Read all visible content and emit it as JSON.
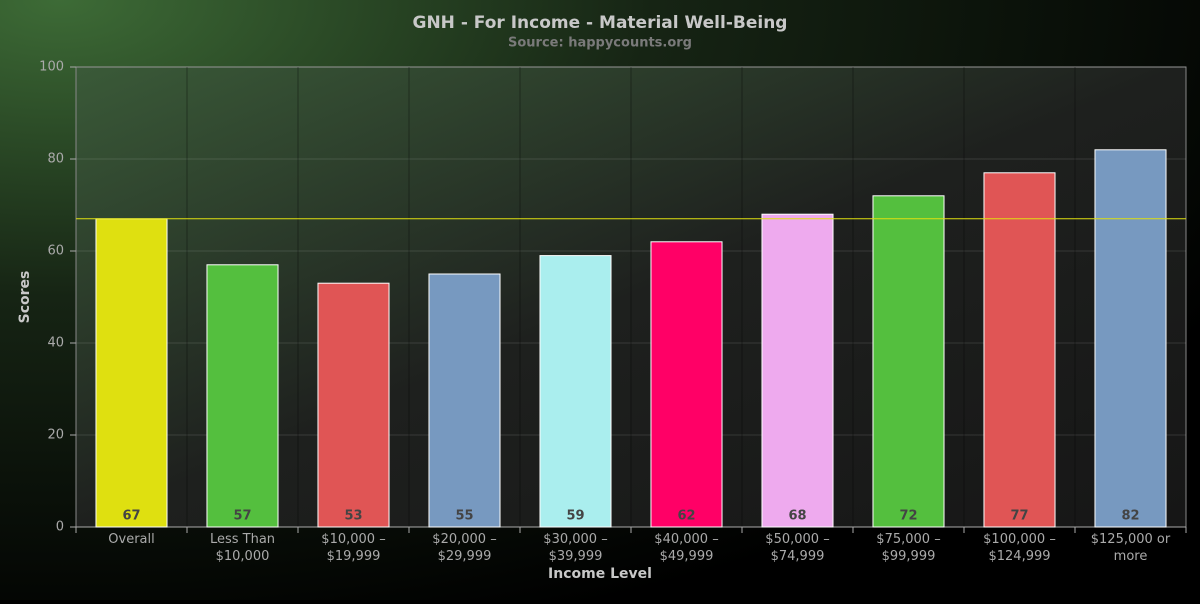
{
  "chart_data": {
    "type": "bar",
    "title": "GNH - For Income - Material Well-Being",
    "subtitle": "Source: happycounts.org",
    "x_label": "Income Level",
    "y_label": "Scores",
    "categories": [
      "Overall",
      "Less Than\n$10,000",
      "$10,000 –\n$19,999",
      "$20,000 –\n$29,999",
      "$30,000 –\n$39,999",
      "$40,000 –\n$49,999",
      "$50,000 –\n$74,999",
      "$75,000 –\n$99,999",
      "$100,000 –\n$124,999",
      "$125,000 or\nmore"
    ],
    "values": [
      67,
      57,
      53,
      55,
      59,
      62,
      68,
      72,
      77,
      82
    ],
    "colors": [
      "#dfe010",
      "#54bf3e",
      "#e05555",
      "#7799c0",
      "#aaeeee",
      "#ff0066",
      "#eeaaee",
      "#54bf3e",
      "#e05555",
      "#7799c0"
    ],
    "ylim": [
      0,
      100
    ],
    "yticks": [
      0,
      20,
      40,
      60,
      80,
      100
    ],
    "grid": true,
    "reference_line_color": "#dfe010"
  }
}
